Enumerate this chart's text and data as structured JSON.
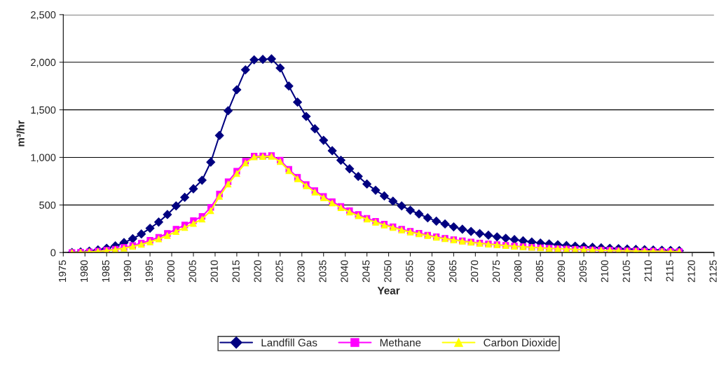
{
  "chart_data": {
    "type": "line",
    "xlabel": "Year",
    "ylabel": "m³/hr",
    "xlim": [
      1975,
      2125
    ],
    "ylim": [
      0,
      2500
    ],
    "xticks": [
      1975,
      1980,
      1985,
      1990,
      1995,
      2000,
      2005,
      2010,
      2015,
      2020,
      2025,
      2030,
      2035,
      2040,
      2045,
      2050,
      2055,
      2060,
      2065,
      2070,
      2075,
      2080,
      2085,
      2090,
      2095,
      2100,
      2105,
      2110,
      2115,
      2120,
      2125
    ],
    "yticks": [
      0,
      {
        "value": 500,
        "label": "500"
      },
      {
        "value": 1000,
        "label": "1,000"
      },
      {
        "value": 1500,
        "label": "1,500"
      },
      {
        "value": 2000,
        "label": "2,000"
      },
      {
        "value": 2500,
        "label": "2,500"
      }
    ],
    "grid": "y",
    "legend": "bottom",
    "x": [
      1977,
      1979,
      1981,
      1983,
      1985,
      1987,
      1989,
      1991,
      1993,
      1995,
      1997,
      1999,
      2001,
      2003,
      2005,
      2007,
      2009,
      2011,
      2013,
      2015,
      2017,
      2019,
      2021,
      2023,
      2025,
      2027,
      2029,
      2031,
      2033,
      2035,
      2037,
      2039,
      2041,
      2043,
      2045,
      2047,
      2049,
      2051,
      2053,
      2055,
      2057,
      2059,
      2061,
      2063,
      2065,
      2067,
      2069,
      2071,
      2073,
      2075,
      2077,
      2079,
      2081,
      2083,
      2085,
      2087,
      2089,
      2091,
      2093,
      2095,
      2097,
      2099,
      2101,
      2103,
      2105,
      2107,
      2109,
      2111,
      2113,
      2115,
      2117
    ],
    "series": [
      {
        "name": "Landfill Gas",
        "color": "#000080",
        "marker": "diamond",
        "values": [
          0,
          5,
          15,
          28,
          45,
          70,
          105,
          145,
          195,
          255,
          320,
          400,
          490,
          580,
          670,
          760,
          950,
          1230,
          1490,
          1710,
          1920,
          2025,
          2030,
          2035,
          1940,
          1750,
          1580,
          1430,
          1300,
          1180,
          1070,
          970,
          880,
          800,
          720,
          655,
          595,
          540,
          490,
          445,
          405,
          365,
          330,
          300,
          270,
          245,
          222,
          200,
          182,
          165,
          150,
          136,
          123,
          111,
          100,
          91,
          82,
          74,
          67,
          61,
          55,
          50,
          45,
          41,
          37,
          33,
          30,
          27,
          25,
          22,
          20
        ]
      },
      {
        "name": "Methane",
        "color": "#ff00ff",
        "marker": "square",
        "values": [
          0,
          3,
          8,
          14,
          23,
          35,
          53,
          73,
          98,
          128,
          160,
          200,
          245,
          290,
          335,
          380,
          475,
          615,
          745,
          855,
          960,
          1013,
          1015,
          1018,
          970,
          875,
          790,
          715,
          650,
          590,
          535,
          485,
          440,
          400,
          360,
          328,
          298,
          270,
          245,
          223,
          203,
          183,
          165,
          150,
          135,
          123,
          111,
          100,
          91,
          83,
          75,
          68,
          62,
          56,
          50,
          46,
          41,
          37,
          34,
          31,
          28,
          25,
          23,
          21,
          19,
          17,
          15,
          14,
          13,
          11,
          10
        ]
      },
      {
        "name": "Carbon Dioxide",
        "color": "#ffff00",
        "marker": "triangle",
        "values": [
          0,
          2,
          6,
          12,
          20,
          30,
          45,
          63,
          85,
          112,
          142,
          178,
          220,
          262,
          305,
          350,
          440,
          590,
          720,
          830,
          940,
          1005,
          1008,
          1010,
          955,
          860,
          775,
          700,
          635,
          575,
          520,
          470,
          425,
          385,
          350,
          318,
          288,
          262,
          237,
          215,
          196,
          177,
          160,
          145,
          131,
          119,
          107,
          97,
          88,
          80,
          73,
          66,
          60,
          54,
          49,
          44,
          40,
          36,
          33,
          30,
          27,
          24,
          22,
          20,
          18,
          16,
          15,
          13,
          12,
          11,
          10
        ]
      }
    ]
  }
}
